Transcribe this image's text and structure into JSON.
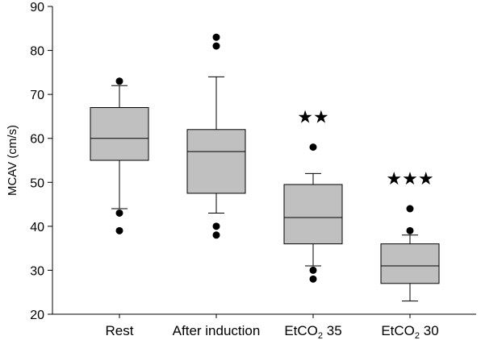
{
  "chart_data": {
    "type": "box",
    "title": "",
    "xlabel": "",
    "ylabel": "MCAV (cm/s)",
    "ylim": [
      20,
      90
    ],
    "yticks": [
      "20",
      "30",
      "40",
      "50",
      "60",
      "70",
      "80",
      "90"
    ],
    "categories": [
      {
        "label": "Rest",
        "label_sub": ""
      },
      {
        "label": "After induction",
        "label_sub": ""
      },
      {
        "label": "EtCO",
        "label_sub": "2",
        "label_suffix": " 35"
      },
      {
        "label": "EtCO",
        "label_sub": "2",
        "label_suffix": " 30"
      }
    ],
    "boxes": [
      {
        "whisker_low": 44,
        "q1": 55,
        "median": 60,
        "q3": 67,
        "whisker_high": 72,
        "outliers": [
          73,
          43,
          39
        ],
        "significance": ""
      },
      {
        "whisker_low": 43,
        "q1": 47.5,
        "median": 57,
        "q3": 62,
        "whisker_high": 74,
        "outliers": [
          83,
          81,
          40,
          38
        ],
        "significance": ""
      },
      {
        "whisker_low": 31,
        "q1": 36,
        "median": 42,
        "q3": 49.5,
        "whisker_high": 52,
        "outliers": [
          58,
          30,
          28
        ],
        "significance": "★★"
      },
      {
        "whisker_low": 23,
        "q1": 27,
        "median": 31,
        "q3": 36,
        "whisker_high": 38,
        "outliers": [
          44,
          39
        ],
        "significance": "★★★"
      }
    ],
    "colors": {
      "box_fill": "#c0c0c0",
      "line": "#000000"
    }
  }
}
